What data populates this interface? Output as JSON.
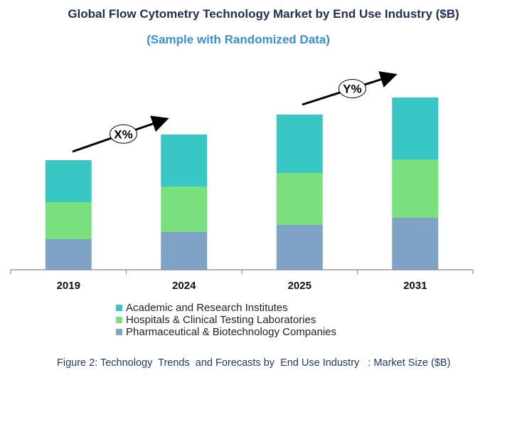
{
  "chart_data": {
    "type": "bar",
    "stacked": true,
    "title": "Global Flow Cytometry Technology Market by End Use Industry ($B)",
    "subtitle": "(Sample with Randomized Data)",
    "caption": "Figure 2: Technology  Trends  and Forecasts by  End Use Industry   : Market Size ($B)",
    "categories": [
      "2019",
      "2024",
      "2025",
      "2031"
    ],
    "series": [
      {
        "name": "Pharmaceutical & Biotechnology Companies",
        "color": "#7ea3c7",
        "values": [
          4.3,
          5.3,
          6.3,
          7.3
        ]
      },
      {
        "name": "Hospitals & Clinical Testing Laboratories",
        "color": "#7ae07e",
        "values": [
          5.2,
          6.4,
          7.3,
          8.2
        ]
      },
      {
        "name": "Academic and Research Institutes",
        "color": "#38c7c5",
        "values": [
          5.9,
          7.3,
          8.2,
          8.7
        ]
      }
    ],
    "legend_order": [
      "Academic and Research Institutes",
      "Hospitals & Clinical Testing Laboratories",
      "Pharmaceutical & Biotechnology Companies"
    ],
    "legend_position": "bottom",
    "annotations": [
      {
        "text": "X%",
        "from": "2019",
        "to": "2024"
      },
      {
        "text": "Y%",
        "from": "2025",
        "to": "2031"
      }
    ],
    "y_axis_visible": false,
    "grid": false
  }
}
